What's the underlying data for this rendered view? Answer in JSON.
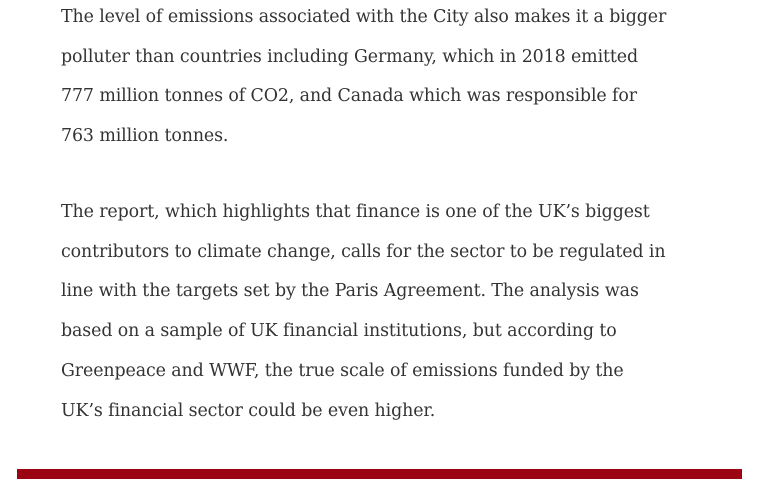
{
  "article": {
    "paragraphs": [
      {
        "lines": [
          "The level of emissions associated with the City also makes it a bigger",
          "polluter than countries including Germany, which in 2018 emitted",
          "777 million tonnes of CO2, and Canada which was responsible for",
          "763 million tonnes."
        ]
      },
      {
        "lines": [
          "The report, which highlights that finance is one of the UK’s biggest",
          "contributors to climate change, calls for the sector to be regulated in",
          "line with the targets set by the Paris Agreement. The analysis was",
          "based on a sample of UK financial institutions, but according to",
          "Greenpeace and WWF, the true scale of emissions funded by the",
          "UK’s financial sector could be even higher."
        ]
      }
    ]
  },
  "colors": {
    "text": "#333333",
    "divider": "#9b0512"
  }
}
